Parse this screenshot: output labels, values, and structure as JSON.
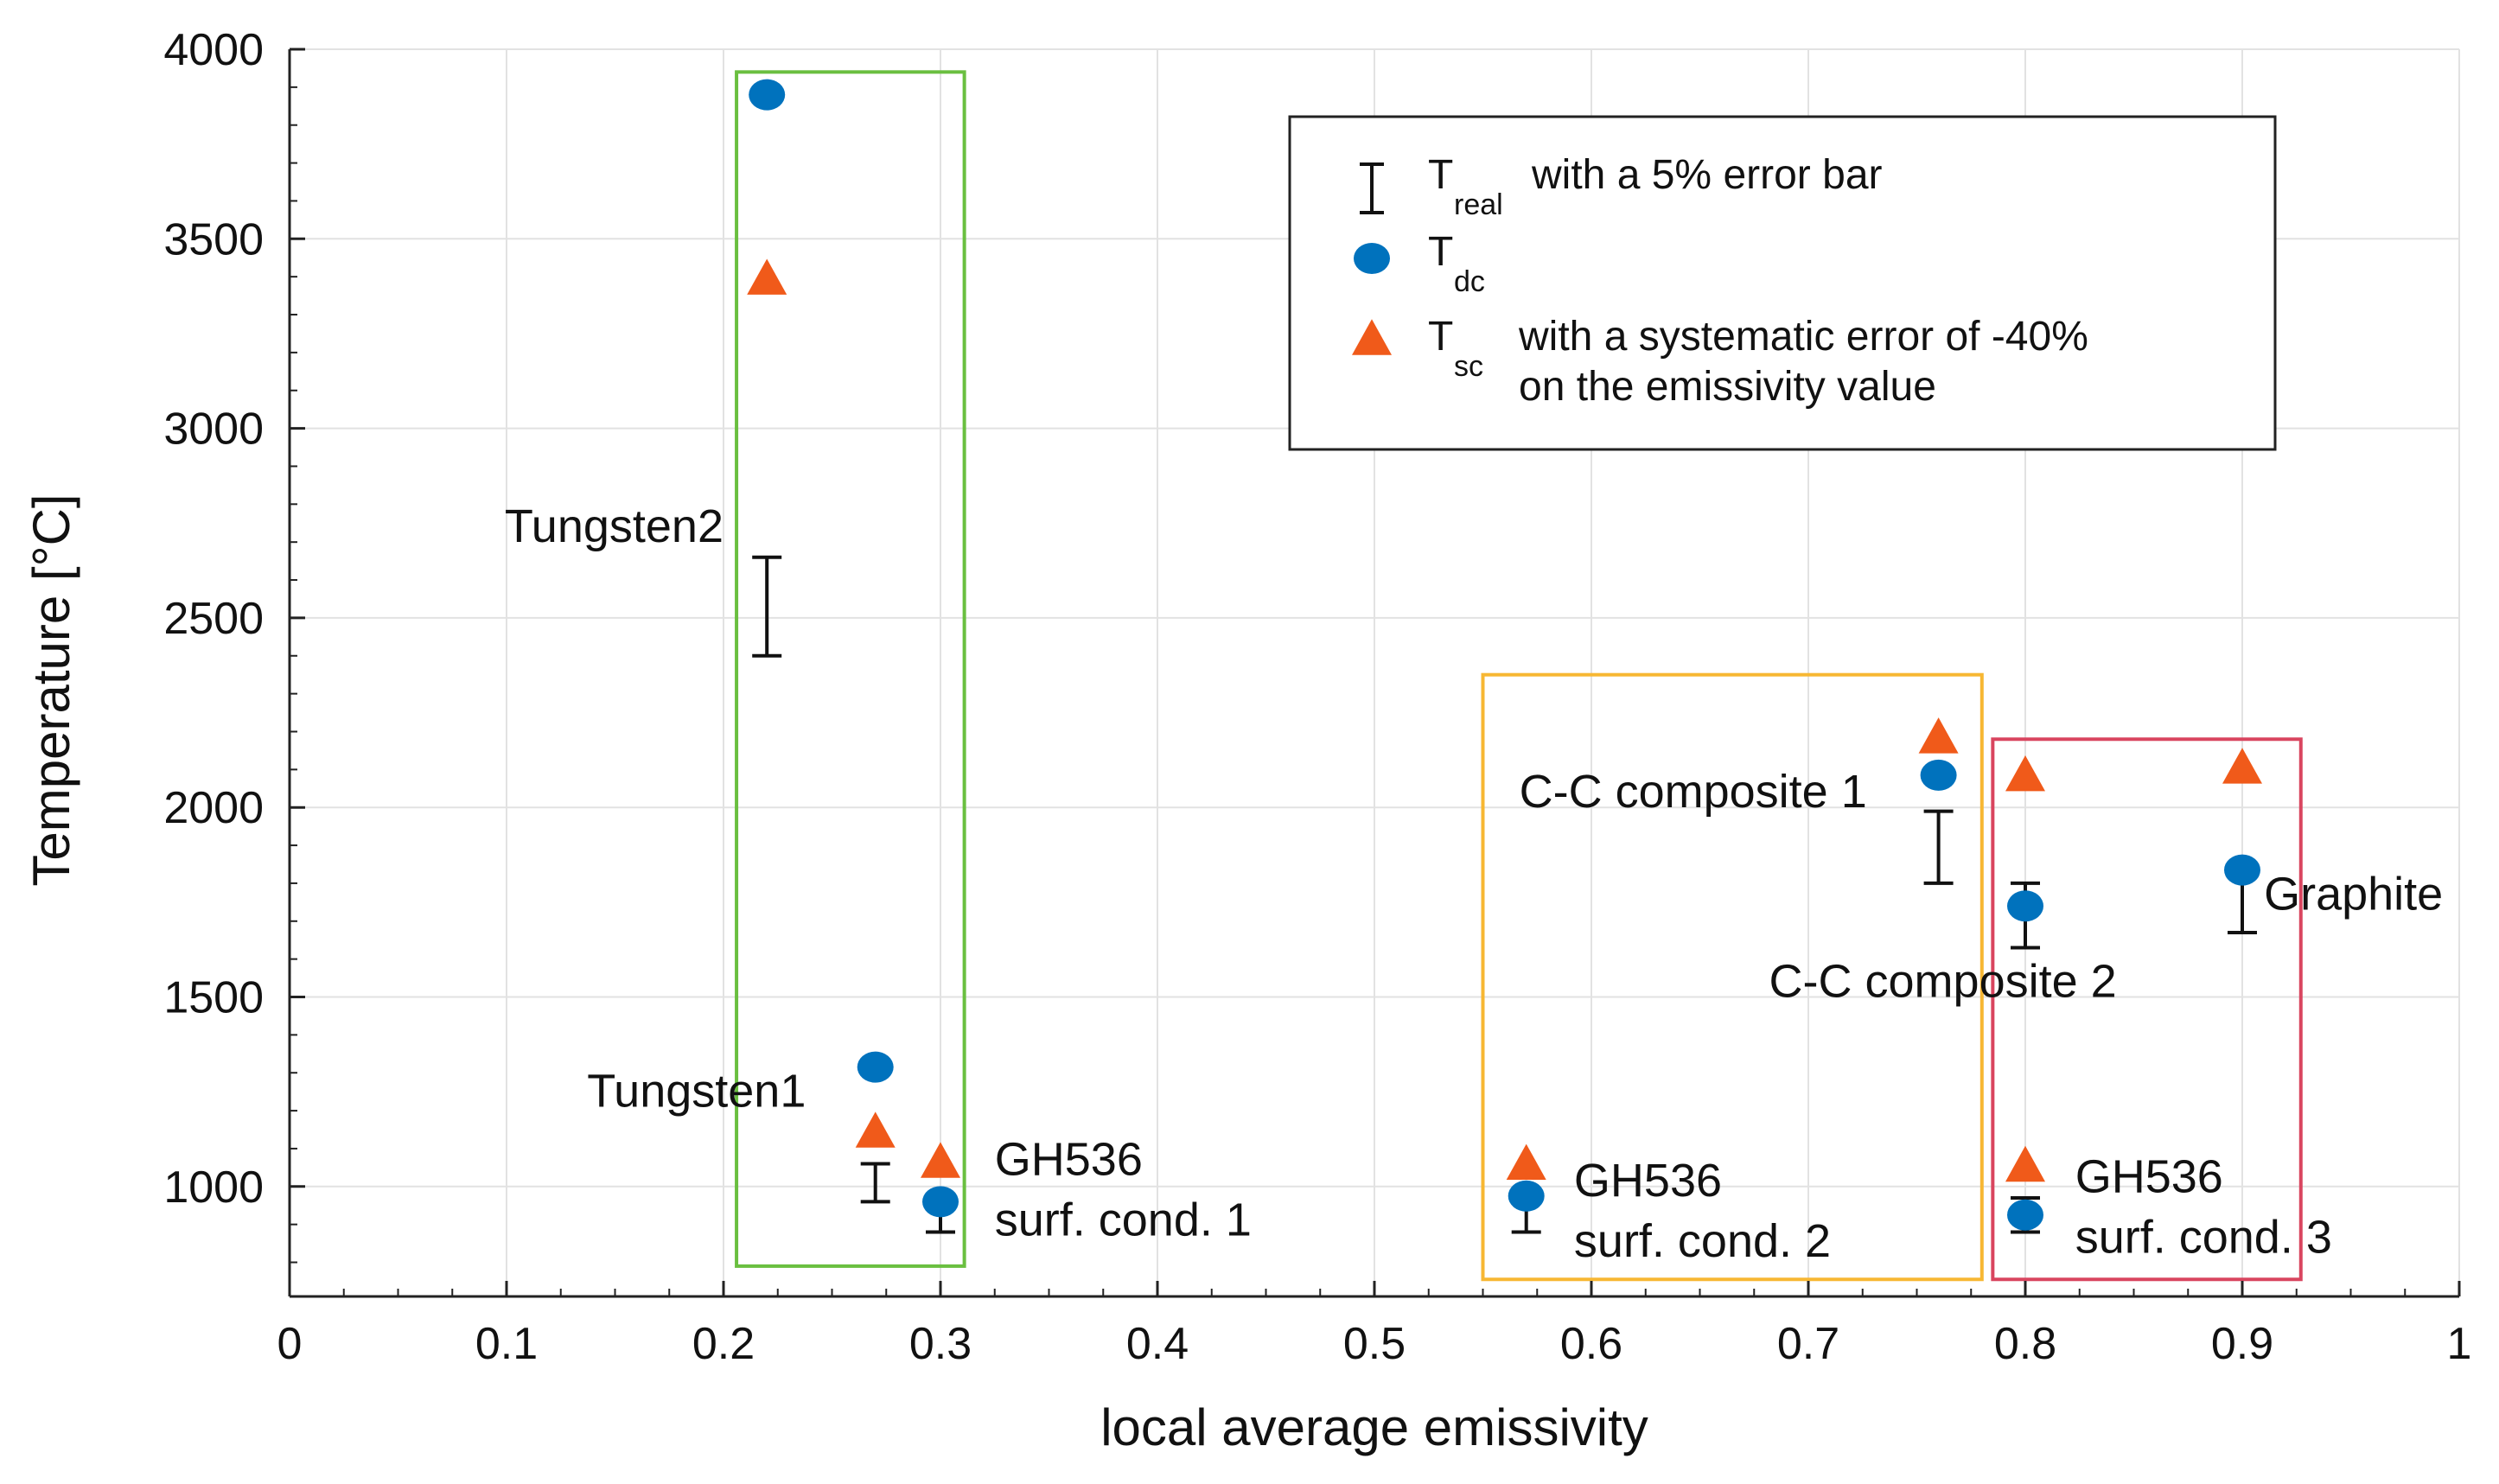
{
  "chart_data": {
    "type": "scatter",
    "xlabel": "local average emissivity",
    "ylabel": "Temperature [°C]",
    "xlim": [
      0,
      1
    ],
    "ylim": [
      710,
      4000
    ],
    "xticks": [
      0,
      0.1,
      0.2,
      0.3,
      0.4,
      0.5,
      0.6,
      0.7,
      0.8,
      0.9,
      1
    ],
    "xtick_labels": [
      "0",
      "0.1",
      "0.2",
      "0.3",
      "0.4",
      "0.5",
      "0.6",
      "0.7",
      "0.8",
      "0.9",
      "1"
    ],
    "yticks": [
      1000,
      1500,
      2000,
      2500,
      3000,
      3500,
      4000
    ],
    "ytick_labels": [
      "1000",
      "1500",
      "2000",
      "2500",
      "3000",
      "3500",
      "4000"
    ],
    "grid": true,
    "legend": {
      "position": "top-right",
      "entries": [
        {
          "marker": "errorbar",
          "symbol": "T",
          "subscript": "real",
          "text": "with a 5% error bar"
        },
        {
          "marker": "circle",
          "symbol": "T",
          "subscript": "dc",
          "text": ""
        },
        {
          "marker": "triangle",
          "symbol": "T",
          "subscript": "sc",
          "text": "with a systematic error of -40%",
          "text2": "on the emissivity value"
        }
      ]
    },
    "colors": {
      "t_dc": "#0072bd",
      "t_sc": "#f05a1a",
      "error_bar": "#111111",
      "box_green": "#6abf40",
      "box_orange": "#f7b733",
      "box_red": "#d9455f",
      "grid": "#e2e2e2"
    },
    "series": [
      {
        "name": "T_real",
        "marker": "errorbar",
        "points": [
          {
            "x": 0.22,
            "low": 2400,
            "high": 2660
          },
          {
            "x": 0.27,
            "low": 960,
            "high": 1060
          },
          {
            "x": 0.3,
            "low": 880,
            "high": 980
          },
          {
            "x": 0.57,
            "low": 880,
            "high": 980
          },
          {
            "x": 0.76,
            "low": 1800,
            "high": 1990
          },
          {
            "x": 0.8,
            "low": 1630,
            "high": 1800
          },
          {
            "x": 0.8,
            "low": 880,
            "high": 970
          },
          {
            "x": 0.9,
            "low": 1670,
            "high": 1840
          }
        ]
      },
      {
        "name": "T_dc",
        "marker": "circle",
        "points": [
          {
            "x": 0.22,
            "y": 3880
          },
          {
            "x": 0.27,
            "y": 1315
          },
          {
            "x": 0.3,
            "y": 960
          },
          {
            "x": 0.57,
            "y": 975
          },
          {
            "x": 0.76,
            "y": 2085
          },
          {
            "x": 0.8,
            "y": 1740
          },
          {
            "x": 0.8,
            "y": 925
          },
          {
            "x": 0.9,
            "y": 1835
          }
        ]
      },
      {
        "name": "T_sc",
        "marker": "triangle",
        "points": [
          {
            "x": 0.22,
            "y": 3400
          },
          {
            "x": 0.27,
            "y": 1150
          },
          {
            "x": 0.3,
            "y": 1070
          },
          {
            "x": 0.57,
            "y": 1065
          },
          {
            "x": 0.76,
            "y": 2190
          },
          {
            "x": 0.8,
            "y": 2090
          },
          {
            "x": 0.8,
            "y": 1060
          },
          {
            "x": 0.9,
            "y": 2110
          }
        ]
      }
    ],
    "group_boxes": [
      {
        "name": "box-green",
        "color": "green",
        "x0": 0.206,
        "x1": 0.311,
        "y0": 790,
        "y1": 3940
      },
      {
        "name": "box-orange",
        "color": "orange",
        "x0": 0.55,
        "x1": 0.78,
        "y0": 755,
        "y1": 2350
      },
      {
        "name": "box-red",
        "color": "red",
        "x0": 0.785,
        "x1": 0.927,
        "y0": 755,
        "y1": 2180
      }
    ],
    "annotations": [
      {
        "name": "label-tungsten2",
        "lines": [
          "Tungsten2"
        ],
        "x": 0.2,
        "y": 2700,
        "anchor": "end"
      },
      {
        "name": "label-tungsten1",
        "lines": [
          "Tungsten1"
        ],
        "x": 0.238,
        "y": 1210,
        "anchor": "end"
      },
      {
        "name": "label-gh536-1",
        "lines": [
          "GH536",
          "surf. cond. 1"
        ],
        "x": 0.325,
        "y": 1030,
        "anchor": "start"
      },
      {
        "name": "label-gh536-2",
        "lines": [
          "GH536",
          "surf. cond. 2"
        ],
        "x": 0.592,
        "y": 975,
        "anchor": "start"
      },
      {
        "name": "label-gh536-3",
        "lines": [
          "GH536",
          "surf. cond. 3"
        ],
        "x": 0.823,
        "y": 985,
        "anchor": "start"
      },
      {
        "name": "label-cc-composite-1",
        "lines": [
          "C-C composite 1"
        ],
        "x": 0.727,
        "y": 2000,
        "anchor": "end"
      },
      {
        "name": "label-cc-composite-2",
        "lines": [
          "C-C composite 2"
        ],
        "x": 0.762,
        "y": 1500,
        "anchor": "middle"
      },
      {
        "name": "label-graphite",
        "lines": [
          "Graphite"
        ],
        "x": 0.91,
        "y": 1730,
        "anchor": "start"
      }
    ]
  }
}
